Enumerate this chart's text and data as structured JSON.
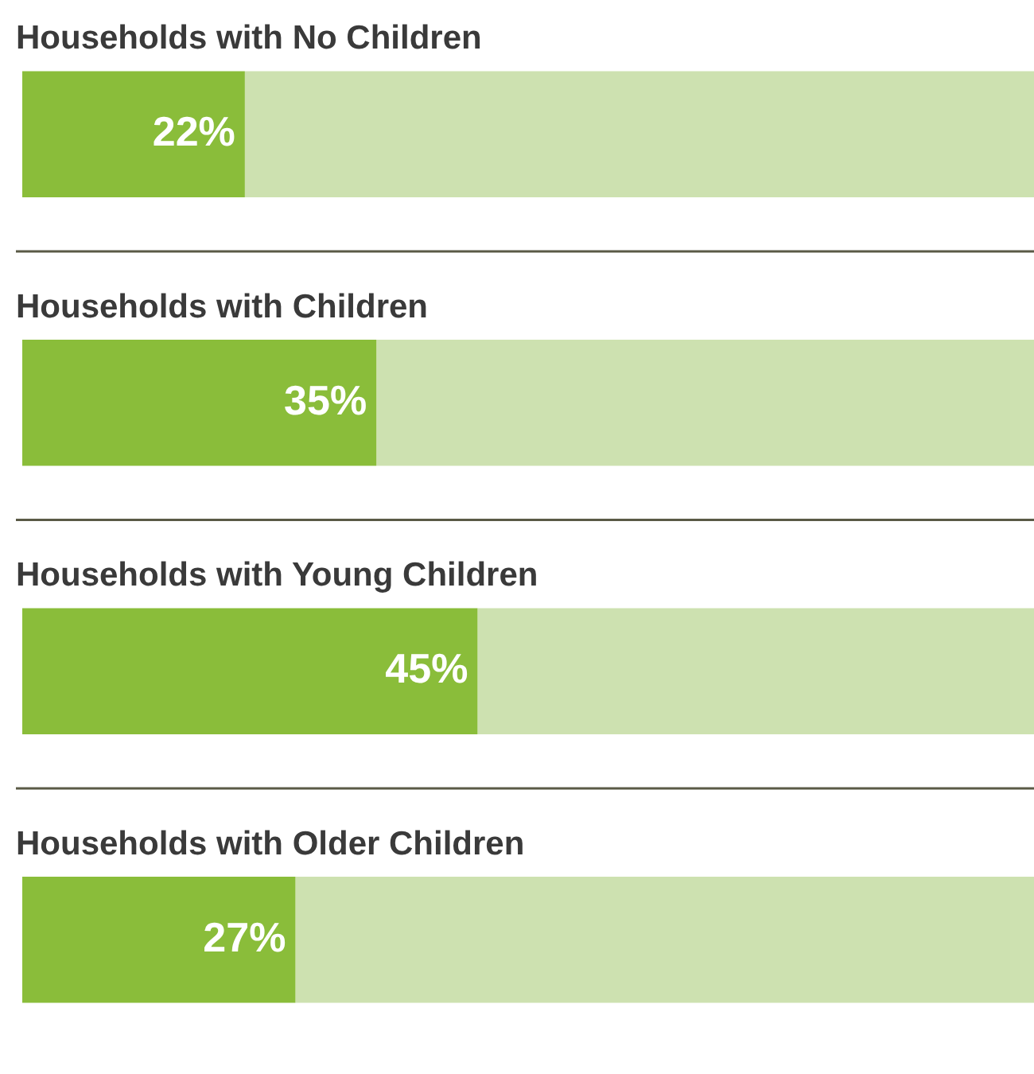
{
  "chart_data": {
    "type": "bar",
    "orientation": "horizontal",
    "stacked": true,
    "categories": [
      "Households with No Children",
      "Households with Children",
      "Households with Young Children",
      "Households with Older Children"
    ],
    "series": [
      {
        "color": "#8abd3a",
        "values": [
          22,
          35,
          45,
          27
        ],
        "value_labels": [
          "22%",
          "35%",
          "45%",
          "27%"
        ]
      },
      {
        "color": "#cde1b0",
        "values": [
          78,
          65,
          55,
          73
        ]
      }
    ],
    "xlim": [
      0,
      100
    ]
  }
}
